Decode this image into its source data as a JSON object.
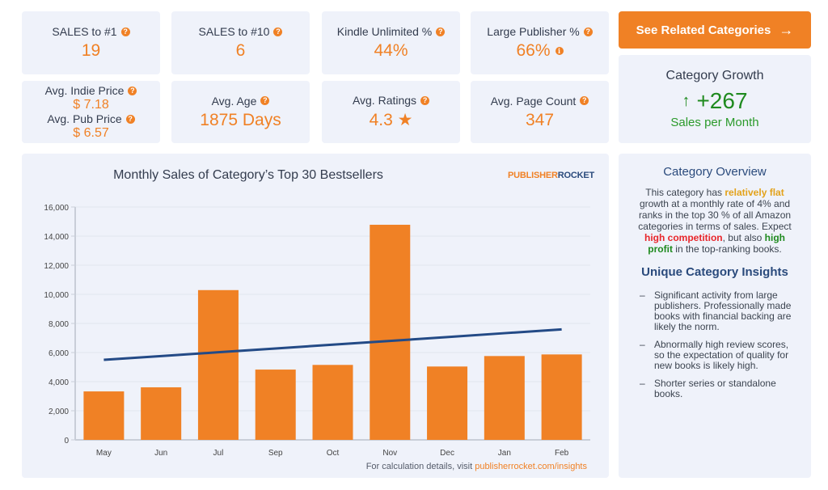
{
  "stats_row1": [
    {
      "label": "SALES to #1",
      "value": "19"
    },
    {
      "label": "SALES to #10",
      "value": "6"
    },
    {
      "label": "Kindle Unlimited %",
      "value": "44%"
    },
    {
      "label": "Large Publisher %",
      "value": "66%"
    }
  ],
  "prices": {
    "indie_label": "Avg. Indie Price",
    "indie_value": "$ 7.18",
    "pub_label": "Avg. Pub Price",
    "pub_value": "$ 6.57"
  },
  "stats_row2": [
    {
      "label": "Avg. Age",
      "value": "1875 Days"
    },
    {
      "label": "Avg. Ratings",
      "value": "4.3 ★"
    },
    {
      "label": "Avg. Page Count",
      "value": "347"
    }
  ],
  "icons": {
    "help": "?",
    "info": "i",
    "arrow_right": "→",
    "arrow_up": "↑"
  },
  "related_button": {
    "label": "See Related Categories"
  },
  "growth": {
    "title": "Category Growth",
    "value": "+267",
    "subtitle": "Sales per Month"
  },
  "brand": {
    "part1": "PUBLISHER",
    "part2": "ROCKET"
  },
  "footer": {
    "prefix": "For calculation details, visit ",
    "link": "publisherrocket.com/insights"
  },
  "overview": {
    "title": "Category Overview",
    "t1": "This category has ",
    "t2": "relatively flat",
    "t3": " growth at a monthly rate of 4% and ranks in the top 30 % of all Amazon categories in terms of sales. Expect ",
    "t4": "high competition",
    "t5": ", but also ",
    "t6": "high profit",
    "t7": " in the top-ranking books."
  },
  "insights": {
    "title": "Unique Category Insights",
    "items": [
      "Significant activity from large publishers. Professionally made books with financial backing are likely the norm.",
      "Abnormally high review scores, so the expectation of quality for new books is likely high.",
      "Shorter series or standalone books."
    ]
  },
  "colors": {
    "accent": "#f08125",
    "trend": "#234a86",
    "growth": "#1f8a1f",
    "card": "#eff2fa"
  },
  "chart_data": {
    "type": "bar",
    "title": "Monthly Sales of Category’s Top 30 Bestsellers",
    "xlabel": "",
    "ylabel": "",
    "categories": [
      "May",
      "Jun",
      "Jul",
      "Sep",
      "Oct",
      "Nov",
      "Dec",
      "Jan",
      "Feb"
    ],
    "series": [
      {
        "name": "Monthly Sales",
        "type": "bar",
        "values": [
          3330,
          3610,
          10290,
          4830,
          5150,
          14780,
          5040,
          5760,
          5870
        ]
      },
      {
        "name": "Trend",
        "type": "line",
        "values": [
          5500,
          5760,
          6020,
          6280,
          6540,
          6800,
          7060,
          7330,
          7590
        ]
      }
    ],
    "ylim": [
      0,
      16000
    ],
    "yticks": [
      0,
      2000,
      4000,
      6000,
      8000,
      10000,
      12000,
      14000,
      16000
    ],
    "ytick_labels": [
      "0",
      "2,000",
      "4,000",
      "6,000",
      "8,000",
      "10,000",
      "12,000",
      "14,000",
      "16,000"
    ],
    "grid": true,
    "legend": "none"
  }
}
